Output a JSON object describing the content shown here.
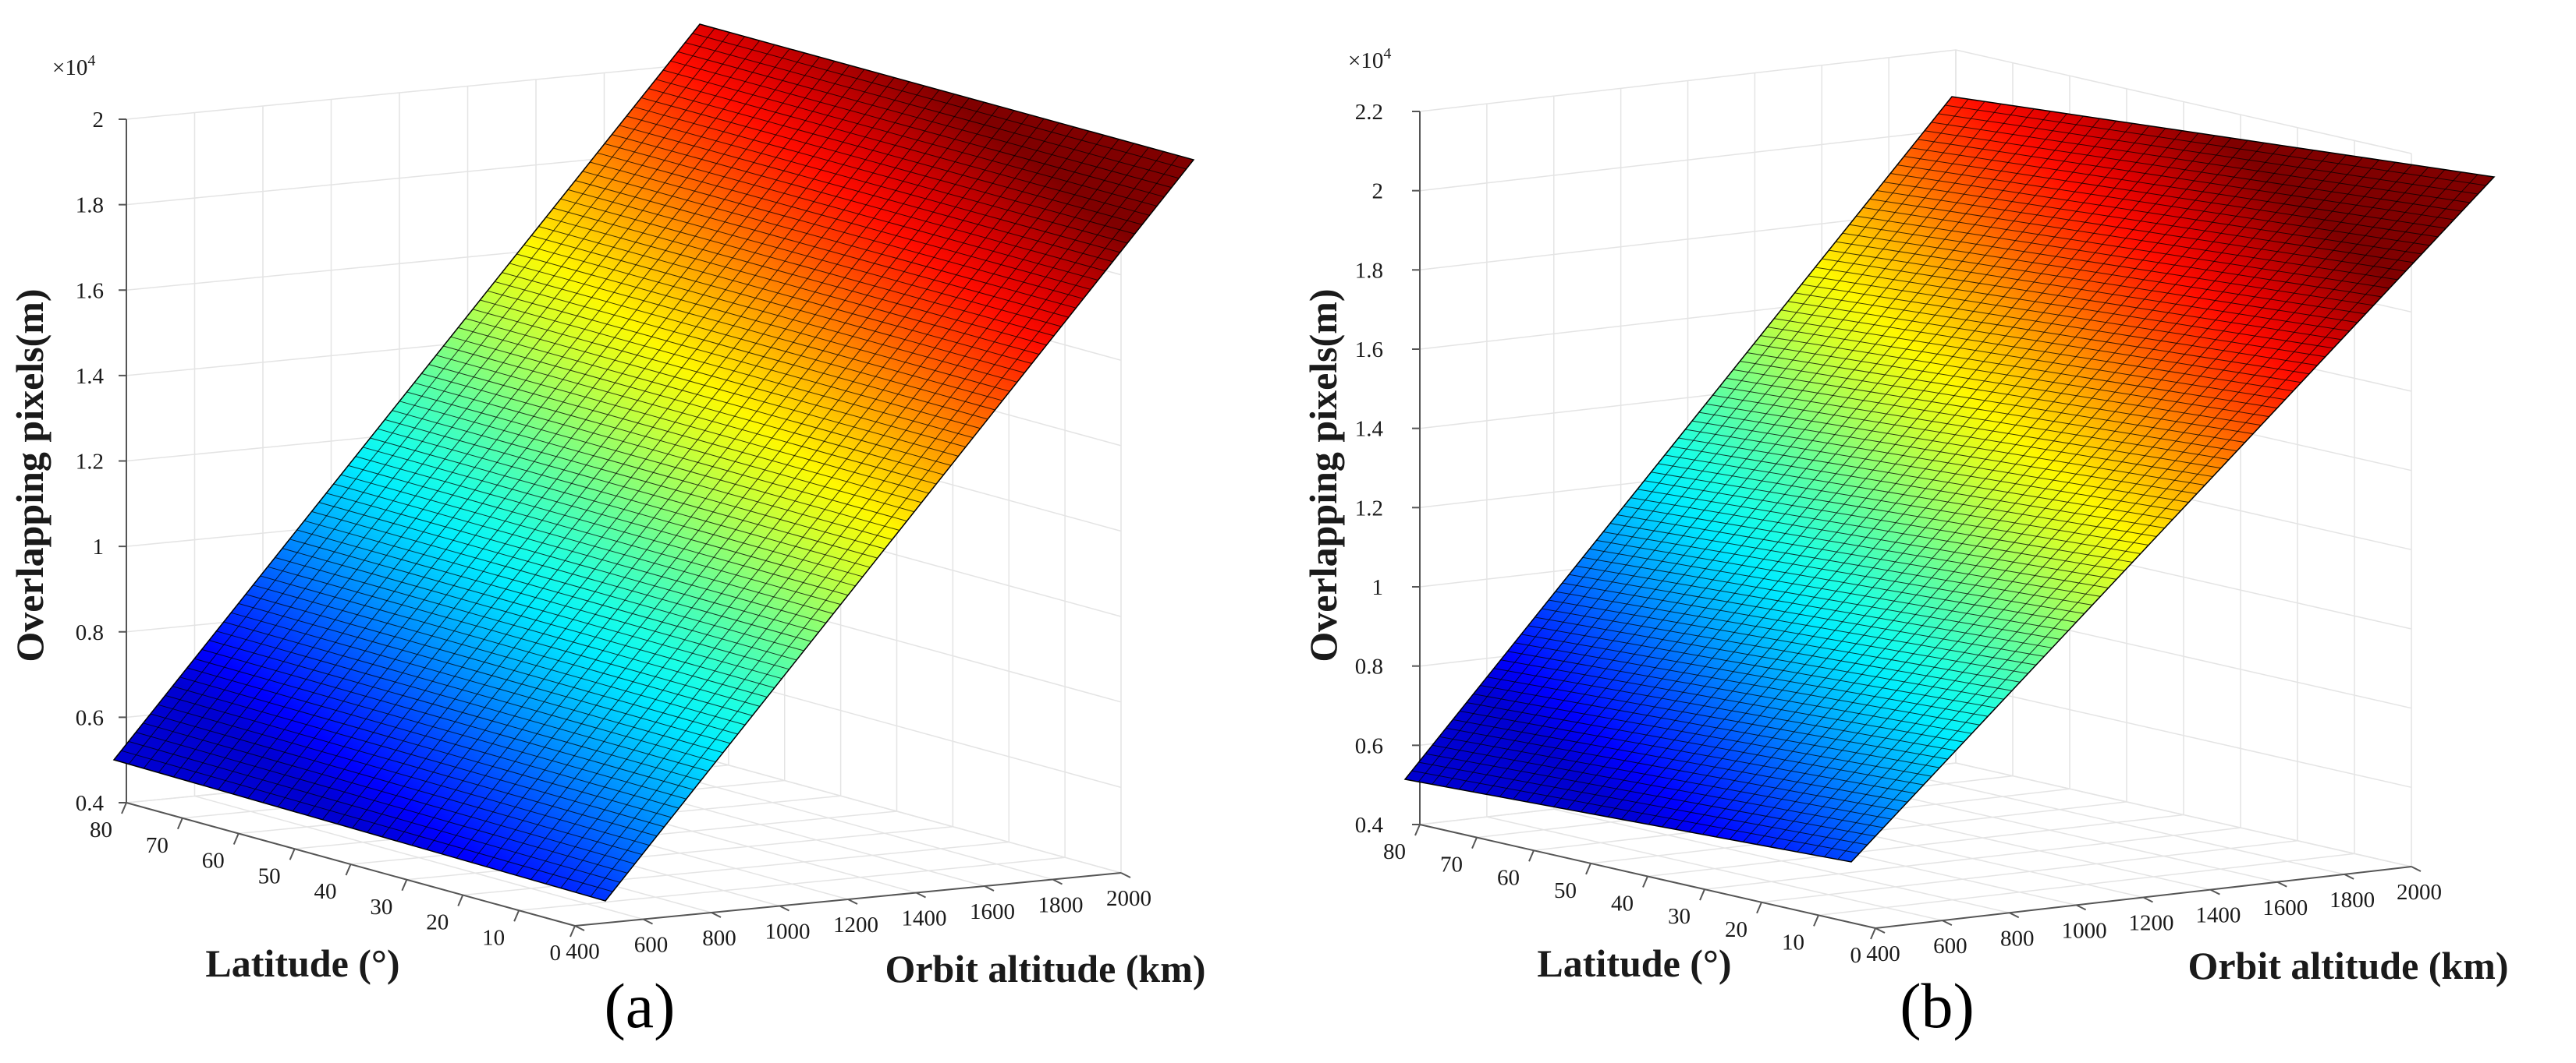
{
  "chart_data": [
    {
      "type": "surface",
      "panel_label": "(a)",
      "xlabel": "Orbit altitude (km)",
      "ylabel": "Latitude (°)",
      "zlabel": "Overlapping pixels(m)",
      "z_exponent_label": "×10",
      "z_exponent_power": "4",
      "x_ticks": [
        "400",
        "600",
        "800",
        "1000",
        "1200",
        "1400",
        "1600",
        "1800",
        "2000"
      ],
      "y_ticks": [
        "0",
        "10",
        "20",
        "30",
        "40",
        "50",
        "60",
        "70",
        "80"
      ],
      "z_ticks": [
        "0.4",
        "0.6",
        "0.8",
        "1",
        "1.2",
        "1.4",
        "1.6",
        "1.8",
        "2"
      ],
      "xlim": [
        400,
        2000
      ],
      "ylim": [
        0,
        80
      ],
      "zlim": [
        0.4,
        2.0
      ],
      "colormap": "jet",
      "corner_values": [
        {
          "altitude": 400,
          "latitude": 80,
          "value": 0.5
        },
        {
          "altitude": 400,
          "latitude": 0,
          "value": 0.5
        },
        {
          "altitude": 2000,
          "latitude": 80,
          "value": 2.0
        },
        {
          "altitude": 2000,
          "latitude": 0,
          "value": 1.97
        }
      ]
    },
    {
      "type": "surface",
      "panel_label": "(b)",
      "xlabel": "Orbit altitude (km)",
      "ylabel": "Latitude (°)",
      "zlabel": "Overlapping pixels(m)",
      "z_exponent_label": "×10",
      "z_exponent_power": "4",
      "x_ticks": [
        "400",
        "600",
        "800",
        "1000",
        "1200",
        "1400",
        "1600",
        "1800",
        "2000"
      ],
      "y_ticks": [
        "0",
        "10",
        "20",
        "30",
        "40",
        "50",
        "60",
        "70",
        "80"
      ],
      "z_ticks": [
        "0.4",
        "0.6",
        "0.8",
        "1",
        "1.2",
        "1.4",
        "1.6",
        "1.8",
        "2",
        "2.2"
      ],
      "xlim": [
        400,
        2000
      ],
      "ylim": [
        0,
        80
      ],
      "zlim": [
        0.4,
        2.2
      ],
      "colormap": "jet",
      "corner_values": [
        {
          "altitude": 400,
          "latitude": 80,
          "value": 0.52
        },
        {
          "altitude": 400,
          "latitude": 0,
          "value": 0.5
        },
        {
          "altitude": 2000,
          "latitude": 80,
          "value": 2.04
        },
        {
          "altitude": 2000,
          "latitude": 0,
          "value": 2.02
        }
      ]
    }
  ]
}
